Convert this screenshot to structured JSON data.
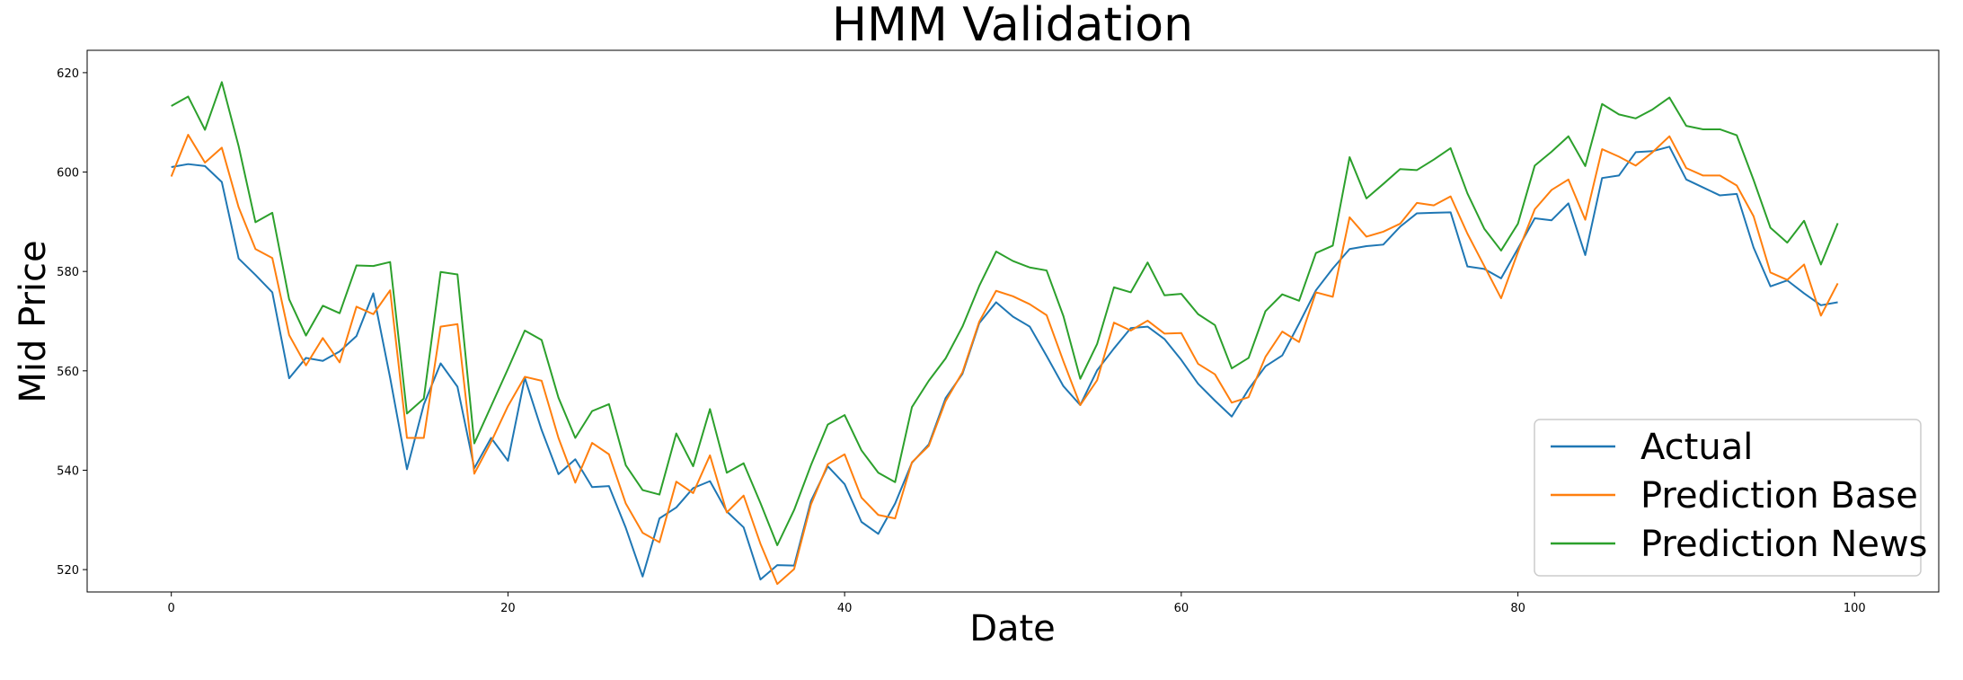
{
  "chart_data": {
    "type": "line",
    "title": "HMM Validation",
    "xlabel": "Date",
    "ylabel": "Mid Price",
    "xlim": [
      -5,
      105
    ],
    "ylim": [
      515.5,
      624.5
    ],
    "xticks": [
      0,
      20,
      40,
      60,
      80,
      100
    ],
    "yticks": [
      520,
      540,
      560,
      580,
      600,
      620
    ],
    "grid": false,
    "legend_position": "lower-right",
    "x": [
      0,
      1,
      2,
      3,
      4,
      5,
      6,
      7,
      8,
      9,
      10,
      11,
      12,
      13,
      14,
      15,
      16,
      17,
      18,
      19,
      20,
      21,
      22,
      23,
      24,
      25,
      26,
      27,
      28,
      29,
      30,
      31,
      32,
      33,
      34,
      35,
      36,
      37,
      38,
      39,
      40,
      41,
      42,
      43,
      44,
      45,
      46,
      47,
      48,
      49,
      50,
      51,
      52,
      53,
      54,
      55,
      56,
      57,
      58,
      59,
      60,
      61,
      62,
      63,
      64,
      65,
      66,
      67,
      68,
      69,
      70,
      71,
      72,
      73,
      74,
      75,
      76,
      77,
      78,
      79,
      80,
      81,
      82,
      83,
      84,
      85,
      86,
      87,
      88,
      89,
      90,
      91,
      92,
      93,
      94,
      95,
      96,
      97,
      98,
      99
    ],
    "series": [
      {
        "name": "Actual",
        "color": "#1f77b4",
        "values": [
          601.0,
          601.6,
          601.2,
          598.0,
          582.6,
          579.3,
          575.8,
          558.5,
          562.6,
          562.0,
          563.9,
          567.0,
          575.6,
          558.6,
          540.2,
          553.2,
          561.5,
          556.8,
          540.4,
          546.5,
          541.9,
          558.6,
          548.1,
          539.2,
          542.2,
          536.6,
          536.8,
          528.4,
          518.6,
          530.3,
          532.5,
          536.4,
          537.8,
          531.7,
          528.5,
          518.0,
          520.9,
          520.8,
          533.8,
          540.8,
          537.2,
          529.6,
          527.2,
          533.3,
          541.5,
          545.2,
          554.5,
          559.4,
          569.6,
          573.8,
          570.9,
          568.9,
          563.0,
          556.9,
          553.1,
          560.1,
          564.5,
          568.6,
          568.9,
          566.4,
          562.2,
          557.4,
          554.0,
          550.8,
          556.3,
          560.9,
          563.1,
          569.5,
          576.2,
          580.6,
          584.5,
          585.1,
          585.4,
          589.0,
          591.7,
          591.8,
          591.9,
          581.0,
          580.5,
          578.6,
          584.6,
          590.7,
          590.3,
          593.7,
          583.3,
          598.8,
          599.3,
          604.0,
          604.2,
          605.1,
          598.5,
          596.9,
          595.3,
          595.6,
          584.8,
          577.0,
          578.2,
          575.6,
          573.2,
          573.8
        ]
      },
      {
        "name": "Prediction Base",
        "color": "#ff7f0e",
        "values": [
          599.1,
          607.5,
          601.9,
          604.9,
          592.9,
          584.5,
          582.7,
          567.2,
          561.1,
          566.6,
          561.7,
          572.9,
          571.4,
          576.2,
          546.5,
          546.5,
          568.9,
          569.4,
          539.3,
          545.7,
          552.9,
          558.8,
          558.0,
          546.5,
          537.5,
          545.5,
          543.2,
          533.3,
          527.4,
          525.5,
          537.7,
          535.4,
          543.0,
          531.5,
          534.9,
          525.2,
          517.1,
          520.1,
          533.1,
          541.2,
          543.2,
          534.5,
          531.0,
          530.3,
          541.6,
          544.9,
          553.9,
          559.7,
          569.9,
          576.1,
          575.0,
          573.4,
          571.2,
          561.9,
          553.1,
          558.1,
          569.7,
          568.1,
          570.1,
          567.5,
          567.6,
          561.4,
          559.3,
          553.6,
          554.7,
          562.8,
          567.9,
          565.8,
          575.8,
          574.9,
          590.9,
          587.0,
          588.0,
          589.6,
          593.8,
          593.3,
          595.1,
          587.6,
          581.1,
          574.6,
          583.9,
          592.5,
          596.4,
          598.5,
          590.4,
          604.6,
          603.1,
          601.3,
          604.0,
          607.2,
          600.8,
          599.3,
          599.3,
          597.3,
          591.1,
          579.8,
          578.3,
          581.4,
          571.1,
          577.6
        ]
      },
      {
        "name": "Prediction News",
        "color": "#2ca02c",
        "values": [
          613.3,
          615.2,
          608.5,
          618.1,
          605.2,
          589.9,
          591.8,
          574.4,
          567.1,
          573.1,
          571.6,
          581.2,
          581.1,
          581.9,
          551.4,
          554.4,
          579.9,
          579.4,
          545.4,
          552.9,
          560.4,
          568.1,
          566.2,
          554.6,
          546.5,
          551.9,
          553.3,
          541.0,
          536.0,
          535.1,
          547.4,
          540.8,
          552.3,
          539.5,
          541.4,
          533.4,
          524.9,
          532.0,
          541.0,
          549.2,
          551.1,
          544.0,
          539.5,
          537.6,
          552.7,
          558.0,
          562.5,
          568.9,
          577.1,
          584.0,
          582.1,
          580.8,
          580.2,
          571.0,
          558.4,
          565.4,
          576.8,
          575.8,
          581.8,
          575.2,
          575.5,
          571.4,
          569.2,
          560.5,
          562.6,
          572.0,
          575.4,
          574.1,
          583.7,
          585.2,
          603.0,
          594.7,
          597.6,
          600.6,
          600.4,
          602.5,
          604.8,
          595.7,
          588.6,
          584.2,
          589.6,
          601.3,
          604.1,
          607.2,
          601.2,
          613.7,
          611.6,
          610.8,
          612.6,
          615.0,
          609.3,
          608.6,
          608.6,
          607.4,
          598.4,
          588.8,
          585.8,
          590.2,
          581.4,
          589.7
        ]
      }
    ]
  }
}
